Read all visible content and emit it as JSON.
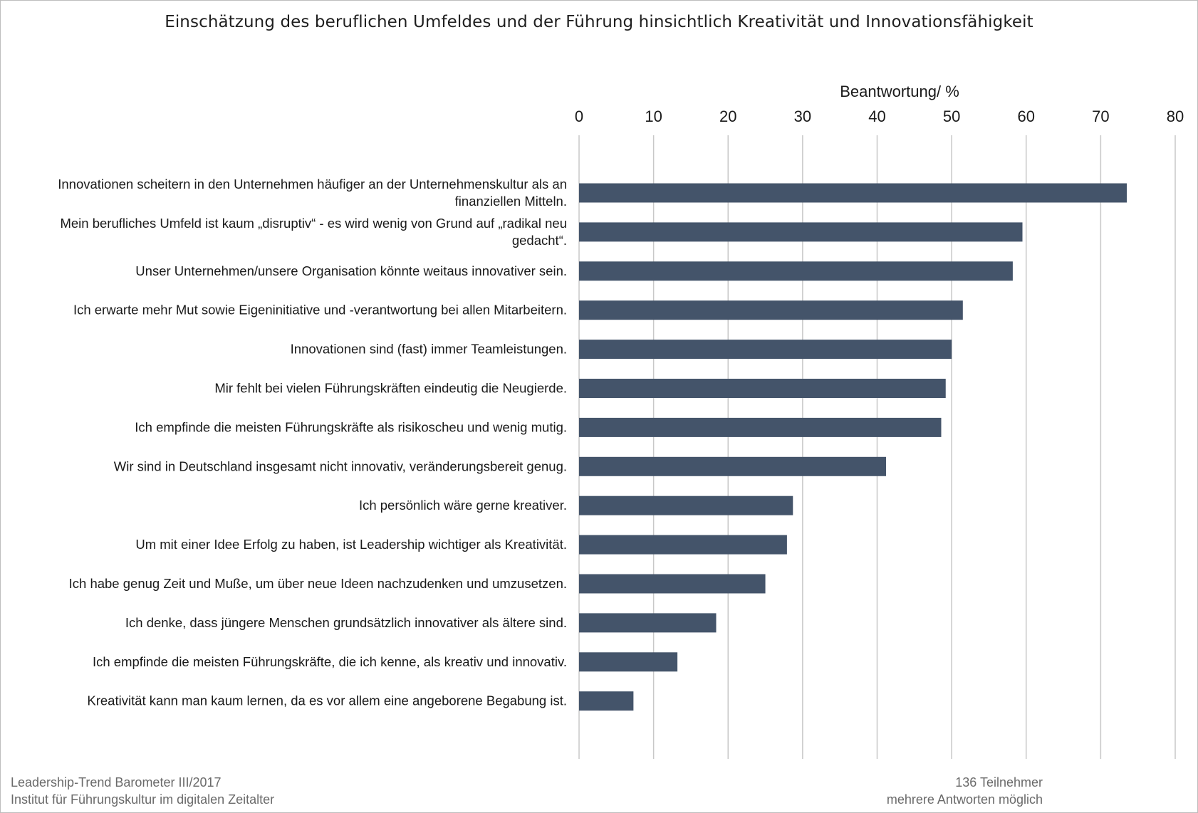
{
  "chart_data": {
    "type": "bar",
    "orientation": "horizontal",
    "title": "Einschätzung des beruflichen Umfeldes und der Führung hinsichtlich Kreativität und Innovationsfähigkeit",
    "xlabel": "Beantwortung/ %",
    "xlim": [
      0,
      80
    ],
    "xticks": [
      0,
      10,
      20,
      30,
      40,
      50,
      60,
      70,
      80
    ],
    "grid": true,
    "bar_color": "#44546a",
    "categories": [
      [
        "Innovationen scheitern in den Unternehmen häufiger an der Unternehmenskultur als an",
        "finanziellen Mitteln."
      ],
      [
        "Mein berufliches Umfeld ist kaum „disruptiv“ - es wird wenig von Grund auf „radikal neu",
        "gedacht“."
      ],
      [
        "Unser Unternehmen/unsere Organisation könnte weitaus innovativer sein."
      ],
      [
        "Ich erwarte mehr Mut sowie Eigeninitiative und -verantwortung bei allen Mitarbeitern."
      ],
      [
        "Innovationen sind (fast) immer Teamleistungen."
      ],
      [
        "Mir fehlt bei vielen Führungskräften eindeutig die Neugierde."
      ],
      [
        "Ich empfinde die meisten Führungskräfte als risikoscheu und wenig mutig. "
      ],
      [
        "Wir sind in Deutschland insgesamt nicht innovativ, veränderungsbereit genug."
      ],
      [
        "Ich persönlich wäre gerne kreativer."
      ],
      [
        "Um mit einer Idee Erfolg zu haben, ist Leadership wichtiger als Kreativität."
      ],
      [
        "Ich habe genug Zeit und Muße, um über neue Ideen nachzudenken und umzusetzen."
      ],
      [
        "Ich denke, dass jüngere Menschen grundsätzlich innovativer als ältere sind."
      ],
      [
        "Ich empfinde die meisten Führungskräfte, die ich kenne, als kreativ und innovativ."
      ],
      [
        "Kreativität kann man kaum lernen, da es vor allem eine angeborene Begabung ist."
      ]
    ],
    "values": [
      73.5,
      59.5,
      58.2,
      51.5,
      50.0,
      49.2,
      48.6,
      41.2,
      28.7,
      27.9,
      25.0,
      18.4,
      13.2,
      7.3
    ]
  },
  "footer": {
    "left_line1": "Leadership-Trend Barometer III/2017",
    "left_line2": "Institut für Führungskultur im digitalen Zeitalter",
    "right_line1": "136 Teilnehmer",
    "right_line2": "mehrere Antworten möglich"
  }
}
